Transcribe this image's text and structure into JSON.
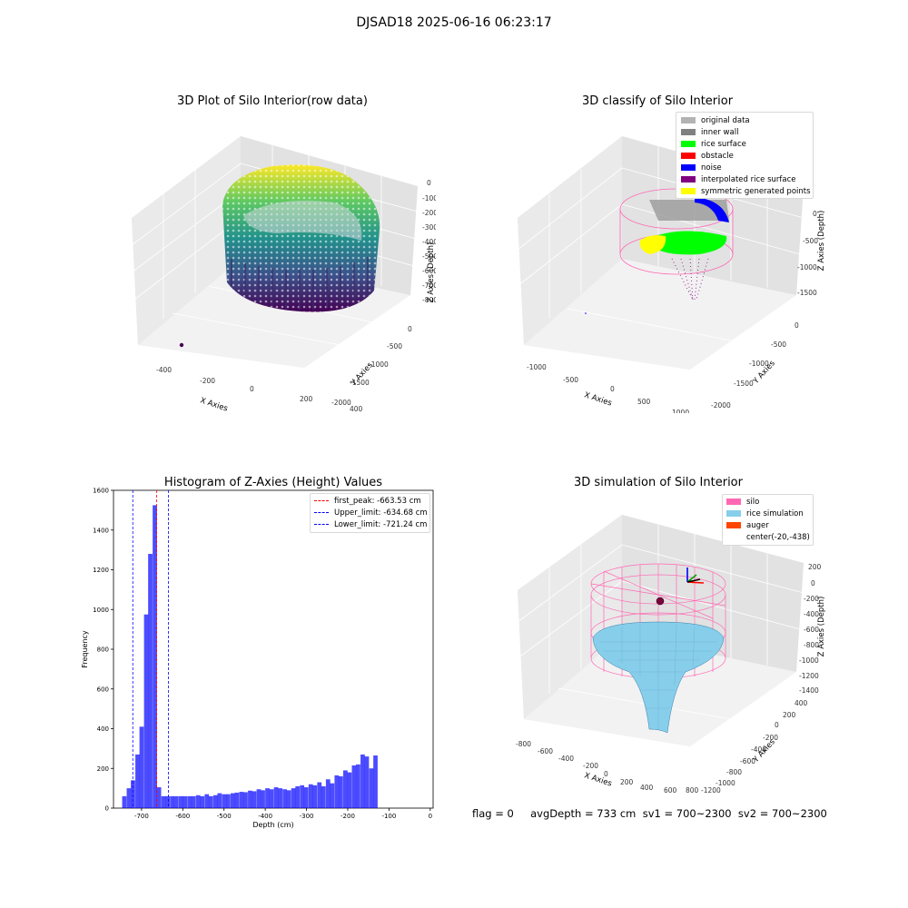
{
  "suptitle": "DJSAD18 2025-06-16 06:23:17",
  "footer": "flag = 0     avgDepth = 733 cm  sv1 = 700~2300  sv2 = 700~2300",
  "chart_data": [
    {
      "type": "scatter3d",
      "title": "3D Plot of Silo Interior(row data)",
      "xlabel": "X Axies",
      "ylabel": "Y Axies",
      "zlabel": "Z Axies (Depth)",
      "x_ticks": [
        "-400",
        "-200",
        "0",
        "200",
        "400"
      ],
      "y_ticks": [
        "0",
        "-500",
        "-1000",
        "-1500",
        "-2000"
      ],
      "z_ticks": [
        "0",
        "-100",
        "-200",
        "-300",
        "-400",
        "-500",
        "-600",
        "-700",
        "-800"
      ],
      "colormap": "viridis"
    },
    {
      "type": "scatter3d",
      "title": "3D classify of Silo Interior",
      "xlabel": "X Axies",
      "ylabel": "Y Axies",
      "zlabel": "Z Axies (Depth)",
      "x_ticks": [
        "-1000",
        "-500",
        "0",
        "500",
        "1000"
      ],
      "y_ticks": [
        "0",
        "-500",
        "-1000",
        "-1500",
        "-2000"
      ],
      "z_ticks": [
        "0",
        "-500",
        "-1000",
        "-1500"
      ],
      "legend_position": "top-right",
      "legend": [
        {
          "label": "original data",
          "color": "#b3b3b3"
        },
        {
          "label": "inner wall",
          "color": "#808080"
        },
        {
          "label": "rice surface",
          "color": "#00ff00"
        },
        {
          "label": "obstacle",
          "color": "#ff0000"
        },
        {
          "label": "noise",
          "color": "#0000ff"
        },
        {
          "label": "interpolated rice surface",
          "color": "#800080"
        },
        {
          "label": "symmetric generated points",
          "color": "#ffff00"
        }
      ]
    },
    {
      "type": "bar",
      "title": "Histogram of Z-Axies (Height) Values",
      "xlabel": "Depth (cm)",
      "ylabel": "Frequency",
      "xlim": [
        -768,
        7
      ],
      "ylim": [
        0,
        1600
      ],
      "x_ticks": [
        -700,
        -600,
        -500,
        -400,
        -300,
        -200,
        -100,
        0
      ],
      "y_ticks": [
        0,
        200,
        400,
        600,
        800,
        1000,
        1200,
        1400,
        1600
      ],
      "bar_color": "#0000ff",
      "bin_width": 10.5,
      "bins": [
        {
          "x": -747,
          "v": 60
        },
        {
          "x": -736,
          "v": 100
        },
        {
          "x": -726,
          "v": 140
        },
        {
          "x": -715,
          "v": 270
        },
        {
          "x": -705,
          "v": 410
        },
        {
          "x": -694,
          "v": 975
        },
        {
          "x": -684,
          "v": 1280
        },
        {
          "x": -673,
          "v": 1525
        },
        {
          "x": -663,
          "v": 105
        },
        {
          "x": -652,
          "v": 60
        },
        {
          "x": -642,
          "v": 60
        },
        {
          "x": -631,
          "v": 60
        },
        {
          "x": -621,
          "v": 60
        },
        {
          "x": -610,
          "v": 60
        },
        {
          "x": -600,
          "v": 60
        },
        {
          "x": -589,
          "v": 60
        },
        {
          "x": -579,
          "v": 60
        },
        {
          "x": -568,
          "v": 65
        },
        {
          "x": -558,
          "v": 60
        },
        {
          "x": -547,
          "v": 70
        },
        {
          "x": -537,
          "v": 60
        },
        {
          "x": -526,
          "v": 65
        },
        {
          "x": -516,
          "v": 75
        },
        {
          "x": -505,
          "v": 70
        },
        {
          "x": -495,
          "v": 70
        },
        {
          "x": -484,
          "v": 75
        },
        {
          "x": -474,
          "v": 78
        },
        {
          "x": -463,
          "v": 82
        },
        {
          "x": -453,
          "v": 80
        },
        {
          "x": -442,
          "v": 88
        },
        {
          "x": -432,
          "v": 85
        },
        {
          "x": -421,
          "v": 95
        },
        {
          "x": -411,
          "v": 90
        },
        {
          "x": -400,
          "v": 100
        },
        {
          "x": -390,
          "v": 95
        },
        {
          "x": -379,
          "v": 105
        },
        {
          "x": -369,
          "v": 100
        },
        {
          "x": -358,
          "v": 95
        },
        {
          "x": -348,
          "v": 90
        },
        {
          "x": -337,
          "v": 100
        },
        {
          "x": -327,
          "v": 110
        },
        {
          "x": -316,
          "v": 115
        },
        {
          "x": -306,
          "v": 105
        },
        {
          "x": -295,
          "v": 120
        },
        {
          "x": -285,
          "v": 115
        },
        {
          "x": -274,
          "v": 130
        },
        {
          "x": -264,
          "v": 110
        },
        {
          "x": -253,
          "v": 145
        },
        {
          "x": -243,
          "v": 125
        },
        {
          "x": -232,
          "v": 165
        },
        {
          "x": -222,
          "v": 160
        },
        {
          "x": -211,
          "v": 190
        },
        {
          "x": -201,
          "v": 180
        },
        {
          "x": -190,
          "v": 215
        },
        {
          "x": -180,
          "v": 220
        },
        {
          "x": -169,
          "v": 270
        },
        {
          "x": -159,
          "v": 260
        },
        {
          "x": -148,
          "v": 200
        },
        {
          "x": -138,
          "v": 265
        }
      ],
      "vlines": [
        {
          "label": "first_peak: -663.53 cm",
          "x": -663.53,
          "color": "#ff0000"
        },
        {
          "label": "Upper_limit: -634.68 cm",
          "x": -634.68,
          "color": "#0000ff"
        },
        {
          "label": "Lower_limit: -721.24 cm",
          "x": -721.24,
          "color": "#0000ff"
        }
      ],
      "legend_position": "top-right"
    },
    {
      "type": "surface3d",
      "title": "3D simulation of Silo Interior",
      "xlabel": "X Axies",
      "ylabel": "Y Axies",
      "zlabel": "Z Axies (Depth)",
      "x_ticks": [
        "-800",
        "-600",
        "-400",
        "-200",
        "0",
        "200",
        "400",
        "600",
        "800"
      ],
      "y_ticks": [
        "400",
        "200",
        "0",
        "-200",
        "-400",
        "-600",
        "-800",
        "-1000",
        "-1200"
      ],
      "z_ticks": [
        "200",
        "0",
        "-200",
        "-400",
        "-600",
        "-800",
        "-1000",
        "-1200",
        "-1400"
      ],
      "legend_position": "top-right",
      "legend": [
        {
          "label": "silo",
          "color": "#ff69b4"
        },
        {
          "label": "rice simulation",
          "color": "#87ceeb"
        },
        {
          "label": "auger",
          "color": "#ff4500"
        },
        {
          "label": "center(-20,-438)",
          "color": ""
        }
      ]
    }
  ]
}
